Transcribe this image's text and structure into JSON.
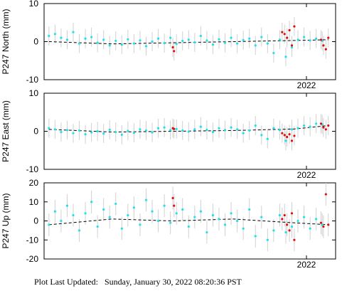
{
  "chart_data": [
    {
      "type": "scatter",
      "ylabel": "P247 North (mm)",
      "xlim": [
        2020.92,
        2022.12
      ],
      "ylim": [
        -10,
        10
      ],
      "yticks": [
        -10,
        0,
        10
      ],
      "xticks": [
        2022
      ],
      "series": [
        {
          "color": "#22e0ee",
          "error": 2.5,
          "x": [
            2020.94,
            2020.965,
            2020.99,
            2021.015,
            2021.04,
            2021.065,
            2021.09,
            2021.115,
            2021.14,
            2021.165,
            2021.19,
            2021.215,
            2021.24,
            2021.265,
            2021.29,
            2021.315,
            2021.34,
            2021.365,
            2021.39,
            2021.415,
            2021.44,
            2021.465,
            2021.49,
            2021.515,
            2021.54,
            2021.565,
            2021.59,
            2021.615,
            2021.64,
            2021.665,
            2021.69,
            2021.715,
            2021.74,
            2021.765,
            2021.79,
            2021.815,
            2021.84,
            2021.865,
            2021.89,
            2021.915,
            2021.94,
            2021.965,
            2021.99,
            2022.015,
            2022.04,
            2022.065
          ],
          "values": [
            1.5,
            2,
            1,
            0.5,
            2.5,
            -0.5,
            0.8,
            1.2,
            -0.3,
            0.5,
            -1,
            0.2,
            -0.8,
            0.6,
            -0.5,
            0.3,
            -1.2,
            0,
            0.8,
            -0.4,
            1,
            -0.6,
            0.2,
            0.5,
            -0.2,
            1.5,
            0.3,
            -0.8,
            0.6,
            -0.3,
            1,
            -0.5,
            0.4,
            0.8,
            -1,
            1.2,
            -0.5,
            -3,
            0.5,
            -4,
            -1.5,
            0.5,
            1.2,
            0.3,
            0.8,
            0.2
          ]
        },
        {
          "color": "#e01010",
          "error": 2.5,
          "x": [
            2021.45,
            2021.455,
            2021.9,
            2021.91,
            2021.92,
            2021.93,
            2021.94,
            2021.95,
            2022.06,
            2022.07,
            2022.08,
            2022.09
          ],
          "values": [
            -1.5,
            -2.5,
            2.5,
            2,
            1,
            3,
            -1,
            4,
            0.5,
            -1,
            -2,
            1
          ]
        }
      ],
      "trend": {
        "color": "#000000",
        "x": [
          2020.94,
          2021.2,
          2021.45,
          2021.7,
          2021.95,
          2022.09
        ],
        "values": [
          0,
          -0.6,
          -0.3,
          0,
          0.3,
          0.5
        ]
      }
    },
    {
      "type": "scatter",
      "ylabel": "P247 East (mm)",
      "xlim": [
        2020.92,
        2022.12
      ],
      "ylim": [
        -10,
        10
      ],
      "yticks": [
        -10,
        0,
        10
      ],
      "xticks": [
        2022
      ],
      "series": [
        {
          "color": "#22e0ee",
          "error": 2.5,
          "x": [
            2020.94,
            2020.965,
            2020.99,
            2021.015,
            2021.04,
            2021.065,
            2021.09,
            2021.115,
            2021.14,
            2021.165,
            2021.19,
            2021.215,
            2021.24,
            2021.265,
            2021.29,
            2021.315,
            2021.34,
            2021.365,
            2021.39,
            2021.415,
            2021.44,
            2021.465,
            2021.49,
            2021.515,
            2021.54,
            2021.565,
            2021.59,
            2021.615,
            2021.64,
            2021.665,
            2021.69,
            2021.715,
            2021.74,
            2021.765,
            2021.79,
            2021.815,
            2021.84,
            2021.865,
            2021.89,
            2021.915,
            2021.94,
            2021.965,
            2021.99,
            2022.015,
            2022.04,
            2022.065
          ],
          "values": [
            0.8,
            0.5,
            -0.2,
            0.3,
            -0.5,
            0.2,
            -0.8,
            -0.3,
            0,
            -0.6,
            0.4,
            -0.2,
            -0.9,
            0.1,
            -0.4,
            0.5,
            0.2,
            -0.3,
            0.8,
            1,
            0.3,
            0.6,
            0.2,
            -0.1,
            0.5,
            1.2,
            0.4,
            -0.2,
            0.8,
            0.3,
            1,
            0.5,
            -0.5,
            0.2,
            1.5,
            -1,
            -2,
            0.8,
            0.3,
            -2.5,
            0.5,
            0.8,
            1.5,
            1.2,
            2,
            1.8
          ]
        },
        {
          "color": "#e01010",
          "error": 2.5,
          "x": [
            2021.45,
            2021.455,
            2021.9,
            2021.91,
            2021.92,
            2021.93,
            2021.94,
            2021.95,
            2022.06,
            2022.07,
            2022.08,
            2022.09
          ],
          "values": [
            0.8,
            0.6,
            -0.5,
            -1,
            -1.5,
            -0.8,
            -2.5,
            -1.2,
            2,
            1,
            0.5,
            1.5
          ]
        }
      ],
      "trend": {
        "color": "#000000",
        "x": [
          2020.94,
          2021.2,
          2021.45,
          2021.7,
          2021.95,
          2022.09
        ],
        "values": [
          0.5,
          -0.2,
          0,
          0.2,
          0.6,
          1.5
        ]
      }
    },
    {
      "type": "scatter",
      "ylabel": "P247 Up (mm)",
      "xlim": [
        2020.92,
        2022.12
      ],
      "ylim": [
        -20,
        20
      ],
      "yticks": [
        -20,
        -10,
        0,
        10,
        20
      ],
      "xticks": [
        2022
      ],
      "series": [
        {
          "color": "#22e0ee",
          "error": 6,
          "x": [
            2020.94,
            2020.965,
            2020.99,
            2021.015,
            2021.04,
            2021.065,
            2021.09,
            2021.115,
            2021.14,
            2021.165,
            2021.19,
            2021.215,
            2021.24,
            2021.265,
            2021.29,
            2021.315,
            2021.34,
            2021.365,
            2021.39,
            2021.415,
            2021.44,
            2021.465,
            2021.49,
            2021.515,
            2021.54,
            2021.565,
            2021.59,
            2021.615,
            2021.64,
            2021.665,
            2021.69,
            2021.715,
            2021.74,
            2021.765,
            2021.79,
            2021.815,
            2021.84,
            2021.865,
            2021.89,
            2021.915,
            2021.94,
            2021.965,
            2021.99,
            2022.015,
            2022.04,
            2022.065
          ],
          "values": [
            -2,
            5,
            0,
            8,
            3,
            -5,
            4,
            10,
            -3,
            6,
            2,
            9,
            -4,
            3,
            7,
            -2,
            11,
            5,
            0,
            8,
            -1,
            4,
            6,
            -3,
            2,
            5,
            -6,
            3,
            1,
            -2,
            4,
            0,
            -4,
            6,
            -8,
            2,
            -10,
            -5,
            3,
            -6,
            -3,
            0,
            2,
            -4,
            1,
            -2
          ]
        },
        {
          "color": "#e01010",
          "error": 6,
          "x": [
            2021.45,
            2021.455,
            2021.9,
            2021.91,
            2021.92,
            2021.93,
            2021.94,
            2021.95,
            2022.06,
            2022.07,
            2022.08,
            2022.09
          ],
          "values": [
            12,
            8,
            1,
            3,
            -2,
            -5,
            4,
            -10,
            -1,
            -3,
            14,
            -2
          ]
        }
      ],
      "trend": {
        "color": "#000000",
        "x": [
          2020.94,
          2021.2,
          2021.45,
          2021.7,
          2021.95,
          2022.09
        ],
        "values": [
          -2,
          1,
          0,
          1,
          -1,
          -2
        ]
      }
    }
  ],
  "footer": "Plot Last Updated:   Sunday, January 30, 2022 08:20:36 PST"
}
